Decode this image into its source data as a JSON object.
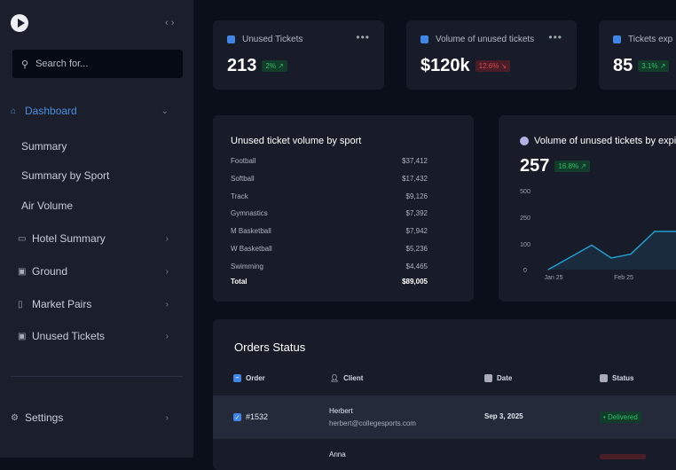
{
  "sidebar": {
    "search_placeholder": "Search for...",
    "dashboard": "Dashboard",
    "sub_items": [
      "Summary",
      "Summary by Sport",
      "Air Volume"
    ],
    "items": [
      "Hotel Summary",
      "Ground",
      "Market Pairs",
      "Unused Tickets"
    ],
    "settings": "Settings"
  },
  "kpis": [
    {
      "title": "Unused Tickets",
      "value": "213",
      "change": "2% ↗",
      "trend": "up"
    },
    {
      "title": "Volume of unused tickets",
      "value": "$120k",
      "change": "12.6% ↘",
      "trend": "down"
    },
    {
      "title": "Tickets exp",
      "value": "85",
      "change": "3.1% ↗",
      "trend": "up"
    }
  ],
  "sport_table": {
    "title": "Unused ticket volume by sport",
    "rows": [
      [
        "Football",
        "$37,412"
      ],
      [
        "Softball",
        "$17,432"
      ],
      [
        "Track",
        "$9,126"
      ],
      [
        "Gymnastics",
        "$7,392"
      ],
      [
        "M Basketball",
        "$7,942"
      ],
      [
        "W Basketball",
        "$5,236"
      ],
      [
        "Swimming",
        "$4,465"
      ]
    ],
    "total_label": "Total",
    "total_value": "$89,005"
  },
  "expiry_chart": {
    "title": "Volume of unused tickets by expi",
    "value": "257",
    "change": "16.8% ↗"
  },
  "chart_data": {
    "type": "line",
    "title": "Volume of unused tickets by expiry",
    "y_ticks": [
      0,
      100,
      250,
      500
    ],
    "x_tick_labels": [
      "Jan 25",
      "Feb 25"
    ],
    "values": [
      0,
      95,
      45,
      60,
      170,
      170
    ]
  },
  "orders": {
    "title": "Orders Status",
    "headers": [
      "Order",
      "Client",
      "Date",
      "Status"
    ],
    "rows": [
      {
        "order": "#1532",
        "name": "Herbert",
        "email": "herbert@collegesports.com",
        "date": "Sep 3, 2025",
        "status": "• Delivered"
      },
      {
        "name": "Anna"
      }
    ]
  },
  "colors": {
    "accent": "#3f86e6",
    "line": "#1f9fd0"
  }
}
